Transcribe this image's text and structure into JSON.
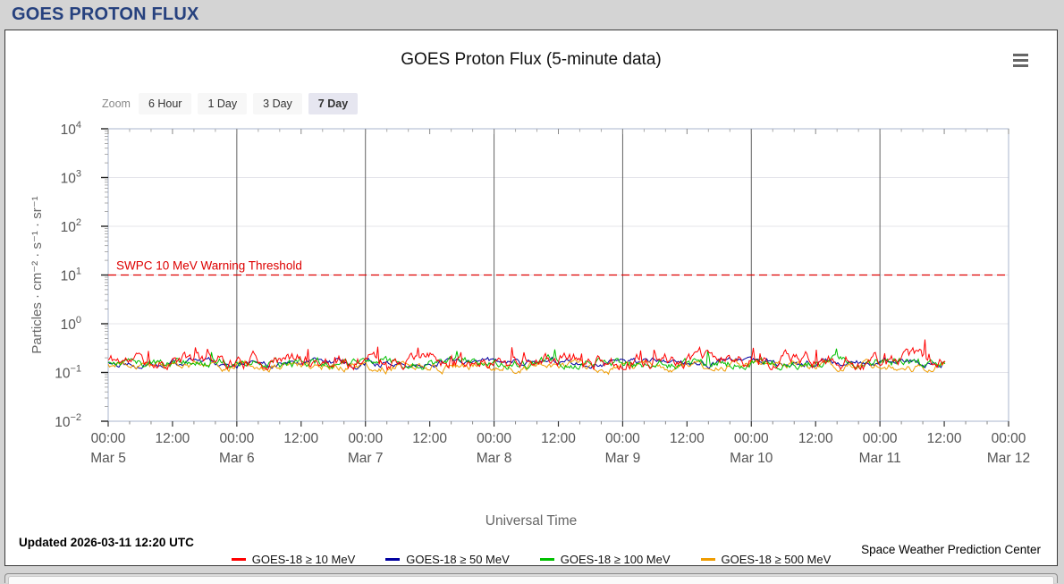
{
  "page": {
    "header_title": "GOES PROTON FLUX"
  },
  "panel": {
    "title": "GOES Proton Flux (5-minute data)",
    "menu_icon": "hamburger-icon",
    "zoom_label": "Zoom",
    "zoom_buttons": [
      {
        "label": "6 Hour",
        "selected": false
      },
      {
        "label": "1 Day",
        "selected": false
      },
      {
        "label": "3 Day",
        "selected": false
      },
      {
        "label": "7 Day",
        "selected": true
      }
    ],
    "updated": "Updated 2026-03-11 12:20 UTC",
    "credit": "Space Weather Prediction Center"
  },
  "chart_data": {
    "type": "line",
    "title": "GOES Proton Flux (5-minute data)",
    "xlabel": "Universal Time",
    "ylabel": "Particles · cm⁻² · s⁻¹ · sr⁻¹",
    "y_scale": "log",
    "ylim": [
      0.01,
      10000
    ],
    "y_tick_exponents": [
      4,
      3,
      2,
      1,
      0,
      -1,
      -2
    ],
    "x_range": [
      "Mar 5 00:00",
      "Mar 12 00:00"
    ],
    "x_ticks": [
      {
        "label": "00:00",
        "date": "Mar 5"
      },
      {
        "label": "12:00"
      },
      {
        "label": "00:00",
        "date": "Mar 6"
      },
      {
        "label": "12:00"
      },
      {
        "label": "00:00",
        "date": "Mar 7"
      },
      {
        "label": "12:00"
      },
      {
        "label": "00:00",
        "date": "Mar 8"
      },
      {
        "label": "12:00"
      },
      {
        "label": "00:00",
        "date": "Mar 9"
      },
      {
        "label": "12:00"
      },
      {
        "label": "00:00",
        "date": "Mar 10"
      },
      {
        "label": "12:00"
      },
      {
        "label": "00:00",
        "date": "Mar 11"
      },
      {
        "label": "12:00"
      },
      {
        "label": "00:00",
        "date": "Mar 12"
      }
    ],
    "grid": {
      "vertical": "at each midnight Mar 6 - Mar 11",
      "horizontal": "at each decade"
    },
    "threshold": {
      "label": "SWPC 10 MeV Warning Threshold",
      "value": 10,
      "color": "#dd0000",
      "style": "dashed"
    },
    "data_end_fraction": 0.9305,
    "data_end_time": "Mar 11 12:20",
    "legend_position": "bottom",
    "series": [
      {
        "name": "GOES-18 ≥ 10 MeV",
        "color": "#ff0000",
        "approx_flux": 0.18,
        "approx_range": [
          0.13,
          0.45
        ],
        "jitter": 0.45,
        "spike_prob": 0.055,
        "spike_gain": 1.1,
        "seed": 11
      },
      {
        "name": "GOES-18 ≥ 50 MeV",
        "color": "#0000a0",
        "approx_flux": 0.16,
        "approx_range": [
          0.13,
          0.22
        ],
        "jitter": 0.22,
        "spike_prob": 0.0,
        "spike_gain": 0,
        "seed": 22
      },
      {
        "name": "GOES-18 ≥ 100 MeV",
        "color": "#00c000",
        "approx_flux": 0.155,
        "approx_range": [
          0.12,
          0.3
        ],
        "jitter": 0.3,
        "spike_prob": 0.015,
        "spike_gain": 0.9,
        "seed": 33
      },
      {
        "name": "GOES-18 ≥ 500 MeV",
        "color": "#ef9c00",
        "approx_flux": 0.135,
        "approx_range": [
          0.1,
          0.19
        ],
        "jitter": 0.28,
        "spike_prob": 0.0,
        "spike_gain": 0,
        "seed": 44
      }
    ]
  }
}
